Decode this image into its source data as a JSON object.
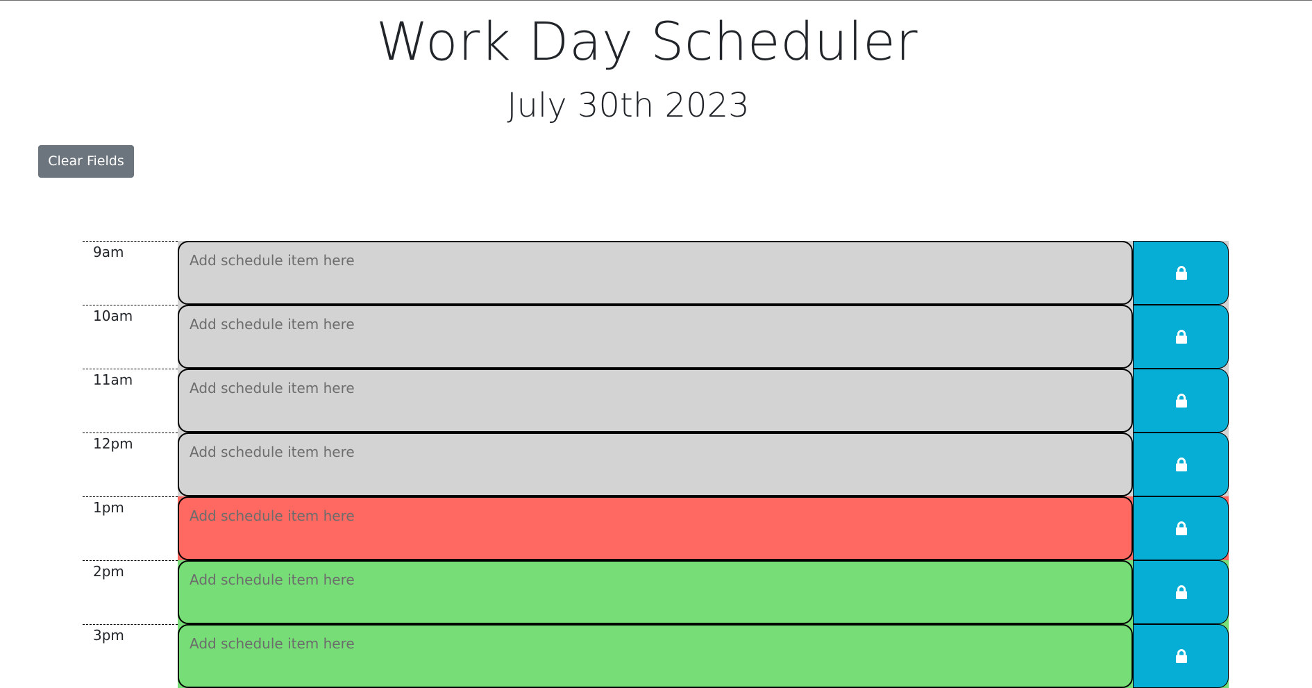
{
  "header": {
    "title": "Work Day Scheduler",
    "date": "July 30th 2023",
    "clear_label": "Clear Fields"
  },
  "schedule": {
    "placeholder": "Add schedule item here",
    "save_icon": "lock-icon",
    "colors": {
      "past": "#d3d3d3",
      "present": "#ff6961",
      "future": "#77dd77",
      "save": "#06aed5"
    },
    "rows": [
      {
        "hour": "9am",
        "status": "past",
        "value": ""
      },
      {
        "hour": "10am",
        "status": "past",
        "value": ""
      },
      {
        "hour": "11am",
        "status": "past",
        "value": ""
      },
      {
        "hour": "12pm",
        "status": "past",
        "value": ""
      },
      {
        "hour": "1pm",
        "status": "present",
        "value": ""
      },
      {
        "hour": "2pm",
        "status": "future",
        "value": ""
      },
      {
        "hour": "3pm",
        "status": "future",
        "value": ""
      }
    ]
  }
}
